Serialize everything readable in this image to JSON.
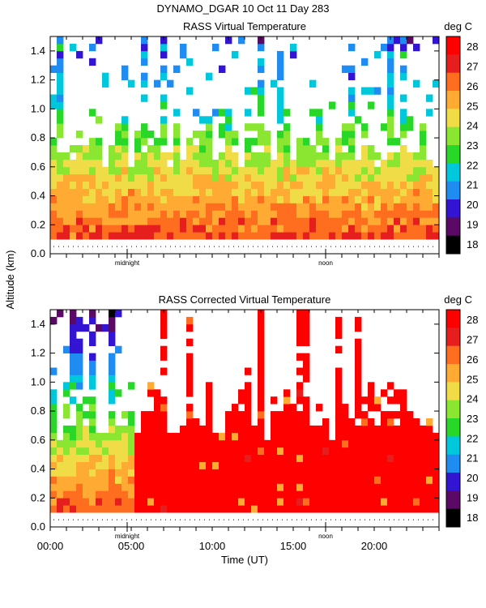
{
  "header": {
    "title": "DYNAMO_DGAR  10 Oct 11 Day 283"
  },
  "chart_data": [
    {
      "type": "heatmap",
      "title": "RASS Virtual Temperature",
      "units_label": "deg C",
      "ylabel": "Altitude (km)",
      "xlabel": "",
      "xlim": [
        0,
        24
      ],
      "ylim": [
        0,
        1.5
      ],
      "y_ticks": [
        "0.0",
        "0.2",
        "0.4",
        "0.6",
        "0.8",
        "1.0",
        "1.2",
        "1.4"
      ],
      "x_markers": [
        "midnight",
        "noon"
      ],
      "x_marker_hours": [
        4.75,
        17.0
      ],
      "colorbar_ticks": [
        "18",
        "19",
        "20",
        "21",
        "22",
        "23",
        "24",
        "25",
        "26",
        "27",
        "28"
      ],
      "data_range_km": [
        0.1,
        1.5
      ],
      "approx_profile": [
        {
          "altitude_km": 0.15,
          "temp_c": 26.5
        },
        {
          "altitude_km": 0.3,
          "temp_c": 25.5
        },
        {
          "altitude_km": 0.5,
          "temp_c": 24.5
        },
        {
          "altitude_km": 0.7,
          "temp_c": 23.5
        },
        {
          "altitude_km": 0.9,
          "temp_c": 22.8
        },
        {
          "altitude_km": 1.2,
          "temp_c": 22.5
        }
      ]
    },
    {
      "type": "heatmap",
      "title": "RASS Corrected Virtual Temperature",
      "units_label": "deg C",
      "ylabel": "Altitude (km)",
      "xlabel": "Time (UT)",
      "xlim": [
        0,
        24
      ],
      "ylim": [
        0,
        1.5
      ],
      "y_ticks": [
        "0.0",
        "0.2",
        "0.4",
        "0.6",
        "0.8",
        "1.0",
        "1.2",
        "1.4"
      ],
      "x_ticks": [
        "00:00",
        "05:00",
        "10:00",
        "15:00",
        "20:00"
      ],
      "x_tick_hours": [
        0,
        5,
        10,
        15,
        20
      ],
      "x_markers": [
        "midnight",
        "noon"
      ],
      "x_marker_hours": [
        4.75,
        17.0
      ],
      "colorbar_ticks": [
        "18",
        "19",
        "20",
        "21",
        "22",
        "23",
        "24",
        "25",
        "26",
        "27",
        "28"
      ],
      "data_range_km": [
        0.1,
        1.5
      ],
      "saturated_period_hours": [
        5.0,
        24.0
      ],
      "approx_profile_early": [
        {
          "altitude_km": 0.15,
          "temp_c": 26.5
        },
        {
          "altitude_km": 0.4,
          "temp_c": 25.5
        },
        {
          "altitude_km": 0.65,
          "temp_c": 23.5
        }
      ],
      "approx_profile_late_c": 28
    }
  ],
  "colorbar": {
    "colors": [
      "#000000",
      "#5a0a64",
      "#3214d2",
      "#1e8cf0",
      "#00c8dc",
      "#28d728",
      "#8be632",
      "#f0dc46",
      "#ffaa32",
      "#ff6e1e",
      "#e61e1e",
      "#ff0000"
    ]
  }
}
